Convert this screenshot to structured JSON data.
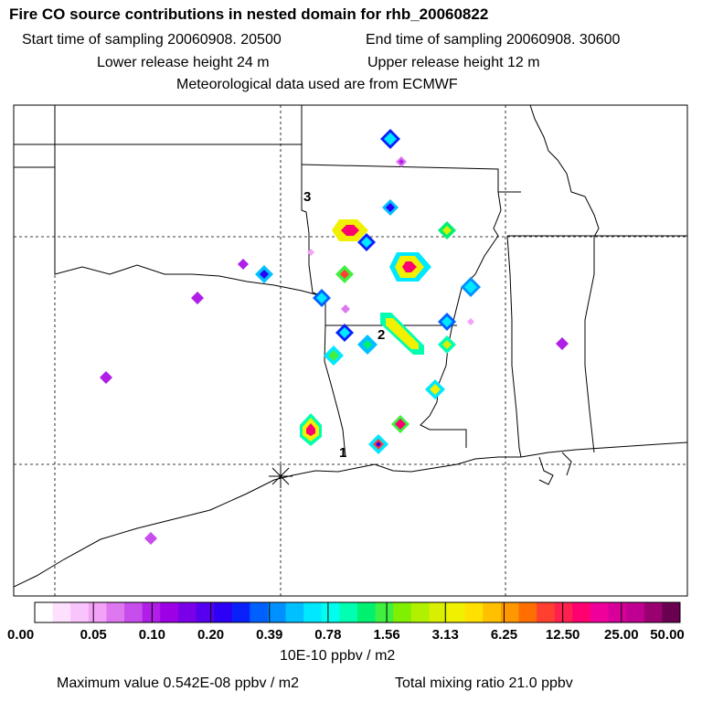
{
  "header": {
    "title": "Fire CO source contributions in nested domain for rhb_20060822",
    "start_sampling": "Start time of sampling 20060908. 20500",
    "end_sampling": "End time of sampling 20060908. 30600",
    "lower_release": "Lower release height   24 m",
    "upper_release": "Upper release height   12 m",
    "met_data": "Meteorological data used are from ECMWF"
  },
  "map": {
    "labels": [
      "1",
      "2",
      "3"
    ]
  },
  "colorbar": {
    "tick_labels": [
      "0.00",
      "0.05",
      "0.10",
      "0.20",
      "0.39",
      "0.78",
      "1.56",
      "3.13",
      "6.25",
      "12.50",
      "25.00",
      "50.00"
    ],
    "colors": [
      "#ffffff",
      "#fde0fd",
      "#f9c3fb",
      "#f4a2f8",
      "#dd78f1",
      "#c74ded",
      "#b01ee8",
      "#9e00e6",
      "#7a00e8",
      "#5500ee",
      "#2d00f5",
      "#0a20fa",
      "#0060ff",
      "#0090ff",
      "#00c0ff",
      "#00e8ff",
      "#00ffee",
      "#00ffb0",
      "#00f070",
      "#40f040",
      "#80f000",
      "#b0f000",
      "#d8f000",
      "#f0f000",
      "#ffe000",
      "#ffc000",
      "#ff9800",
      "#ff6e00",
      "#ff4030",
      "#ff2050",
      "#ff0070",
      "#f0009a",
      "#d8009a",
      "#c00090",
      "#9a0070",
      "#6a0050"
    ],
    "units": "10E-10 ppbv / m2"
  },
  "footer": {
    "max_value": "Maximum value  0.542E-08 ppbv / m2",
    "total_mixing_ratio": "Total mixing ratio       21.0 ppbv"
  }
}
